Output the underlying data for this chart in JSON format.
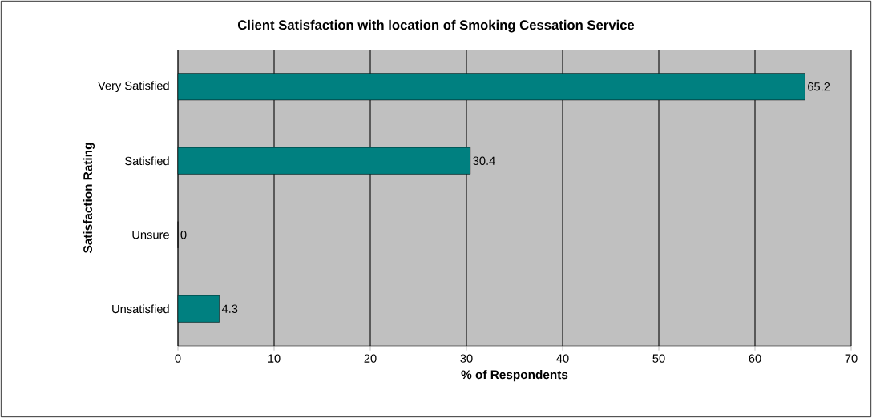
{
  "chart_data": {
    "type": "bar",
    "orientation": "horizontal",
    "title": "Client Satisfaction with location of Smoking Cessation Service",
    "xlabel": "% of Respondents",
    "ylabel": "Satisfaction Rating",
    "categories": [
      "Very Satisfied",
      "Satisfied",
      "Unsure",
      "Unsatisfied"
    ],
    "values": [
      65.2,
      30.4,
      0,
      4.3
    ],
    "color": "#008080",
    "xlim": [
      0,
      70
    ],
    "xticks": [
      0,
      10,
      20,
      30,
      40,
      50,
      60,
      70
    ],
    "grid": "x",
    "data_labels": true
  }
}
